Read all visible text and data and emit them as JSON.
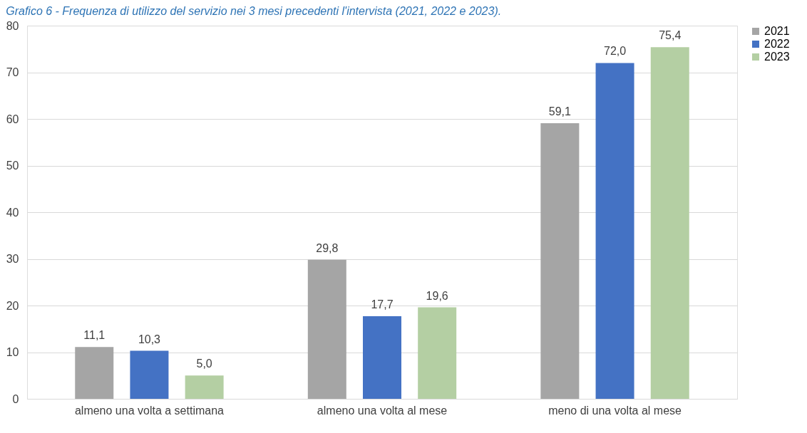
{
  "chart_data": {
    "type": "bar",
    "title": "Grafico 6 - Frequenza di utilizzo del servizio nei 3 mesi precedenti l'intervista (2021, 2022 e 2023).",
    "categories": [
      "almeno una volta a settimana",
      "almeno una  volta al mese",
      "meno di  una volta al mese"
    ],
    "series": [
      {
        "name": "2021",
        "color": "#a5a5a5",
        "values": [
          11.1,
          29.8,
          59.1
        ],
        "value_labels": [
          "11,1",
          "29,8",
          "59,1"
        ]
      },
      {
        "name": "2022",
        "color": "#4472c4",
        "values": [
          10.3,
          17.7,
          72.0
        ],
        "value_labels": [
          "10,3",
          "17,7",
          "72,0"
        ]
      },
      {
        "name": "2023",
        "color": "#b4cfa3",
        "values": [
          5.0,
          19.6,
          75.4
        ],
        "value_labels": [
          "5,0",
          "19,6",
          "75,4"
        ]
      }
    ],
    "ylim": [
      0,
      80
    ],
    "yticks": [
      0,
      10,
      20,
      30,
      40,
      50,
      60,
      70,
      80
    ],
    "grid": "y",
    "legend": "right"
  }
}
